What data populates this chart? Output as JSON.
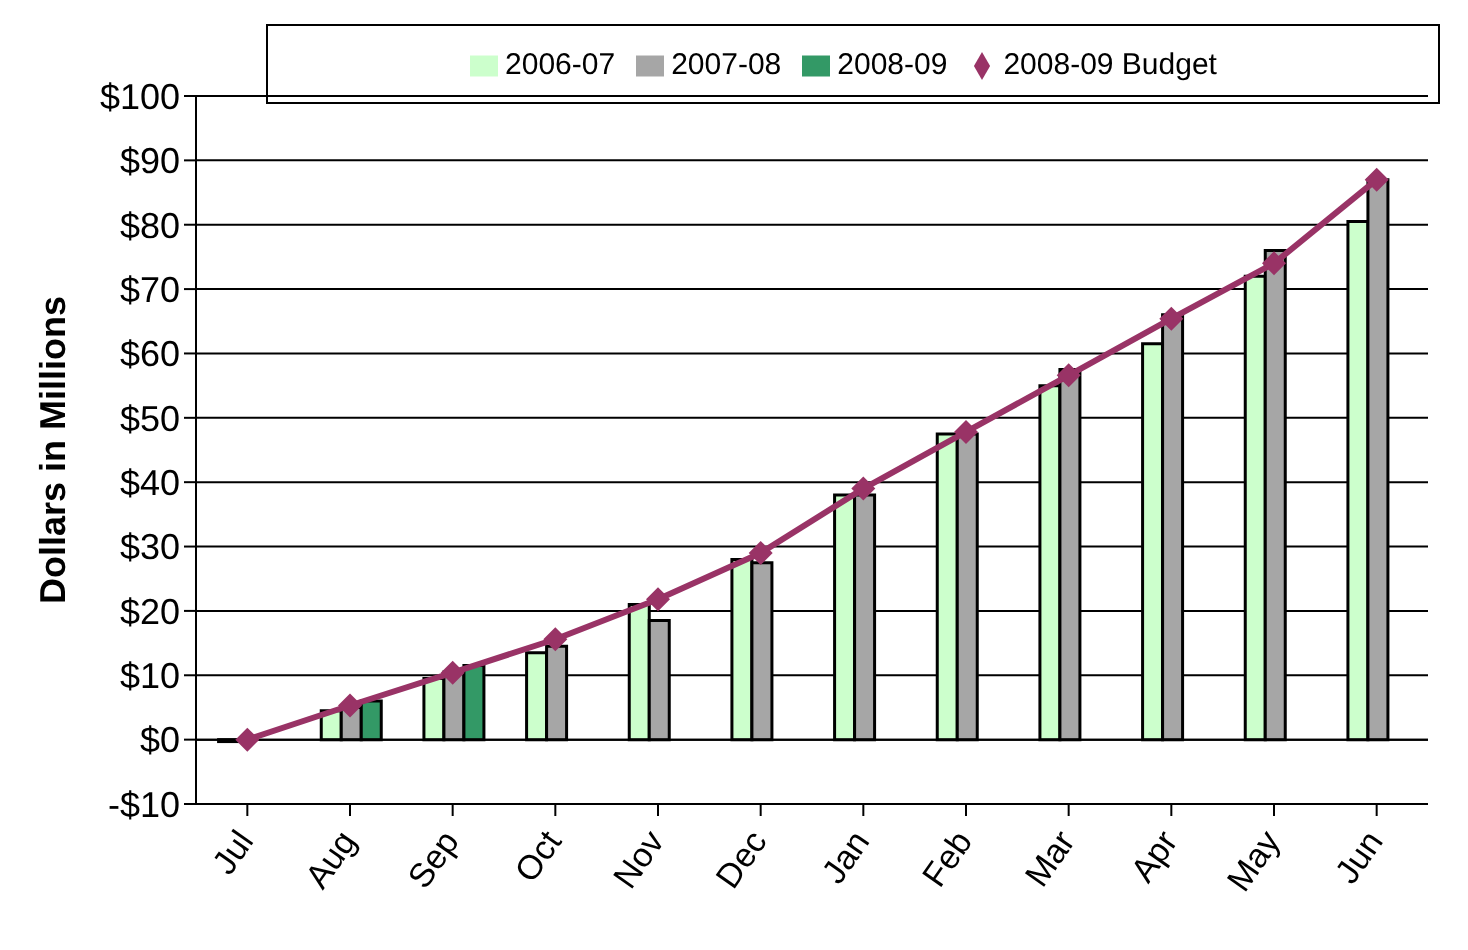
{
  "chart_data": {
    "type": "bar",
    "ylabel": "Dollars in Millions",
    "categories": [
      "Jul",
      "Aug",
      "Sep",
      "Oct",
      "Nov",
      "Dec",
      "Jan",
      "Feb",
      "Mar",
      "Apr",
      "May",
      "Jun"
    ],
    "series": [
      {
        "name": "2006-07",
        "color": "#ccffcc",
        "values": [
          -0.3,
          4.5,
          9.5,
          13.5,
          21,
          28,
          38,
          47.5,
          55,
          61.5,
          72,
          80.5
        ]
      },
      {
        "name": "2007-08",
        "color": "#a6a6a6",
        "values": [
          null,
          5,
          10.5,
          14.5,
          18.5,
          27.5,
          38,
          47.5,
          57.5,
          66,
          76,
          87
        ]
      },
      {
        "name": "2008-09",
        "color": "#339966",
        "values": [
          null,
          6,
          11.5,
          null,
          null,
          null,
          null,
          null,
          null,
          null,
          null,
          null
        ]
      },
      {
        "name": "2008-09 Budget",
        "type": "line",
        "color": "#993366",
        "marker": "diamond",
        "values": [
          0,
          5.3,
          10.4,
          15.6,
          21.8,
          29,
          39,
          47.8,
          56.6,
          65.4,
          74,
          87
        ]
      }
    ],
    "ylim": [
      -10,
      100
    ],
    "yticks": [
      {
        "value": -10,
        "label": "-$10"
      },
      {
        "value": 0,
        "label": "$0"
      },
      {
        "value": 10,
        "label": "$10"
      },
      {
        "value": 20,
        "label": "$20"
      },
      {
        "value": 30,
        "label": "$30"
      },
      {
        "value": 40,
        "label": "$40"
      },
      {
        "value": 50,
        "label": "$50"
      },
      {
        "value": 60,
        "label": "$60"
      },
      {
        "value": 70,
        "label": "$70"
      },
      {
        "value": 80,
        "label": "$80"
      },
      {
        "value": 90,
        "label": "$90"
      },
      {
        "value": 100,
        "label": "$100"
      }
    ],
    "grid": "y",
    "legend": "top"
  }
}
